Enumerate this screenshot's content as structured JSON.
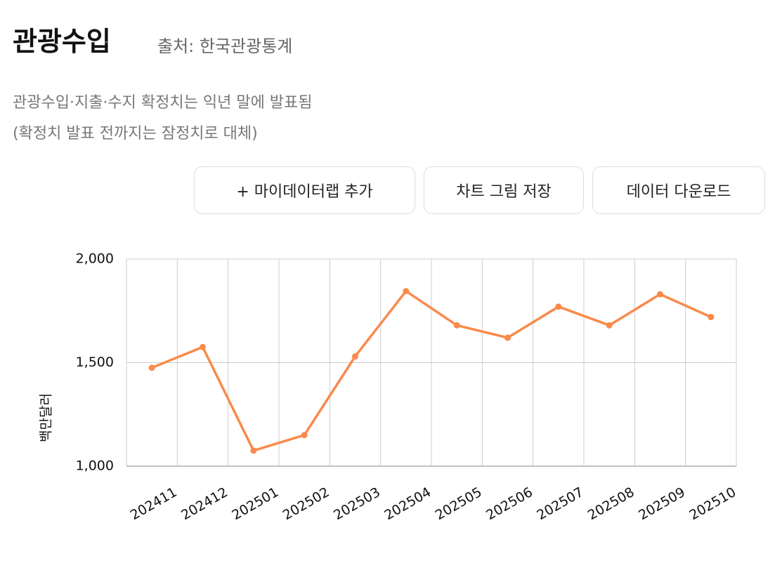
{
  "header": {
    "title": "관광수입",
    "source": "출처: 한국관광통계"
  },
  "note": [
    "관광수입·지출·수지 확정치는 익년 말에 발표됨",
    "(확정치 발표 전까지는 잠정치로 대체)"
  ],
  "buttons": [
    "+  마이데이터랩 추가",
    "차트 그림 저장",
    "데이터 다운로드"
  ],
  "chart_data": {
    "type": "line",
    "y_label": "백만달러",
    "categories": [
      "202411",
      "202412",
      "202501",
      "202502",
      "202503",
      "202504",
      "202505",
      "202506",
      "202507",
      "202508",
      "202509",
      "202510"
    ],
    "series": [
      {
        "name": "관광수입",
        "color": "#f98a4b",
        "values": [
          1475,
          1575,
          1075,
          1150,
          1530,
          1845,
          1680,
          1620,
          1770,
          1680,
          1830,
          1720
        ]
      }
    ],
    "ylim": [
      1000,
      2000
    ],
    "yticks": [
      {
        "value": 1000,
        "label": "1,000"
      },
      {
        "value": 1500,
        "label": "1,500"
      },
      {
        "value": 2000,
        "label": "2,000"
      }
    ],
    "grid": true
  }
}
